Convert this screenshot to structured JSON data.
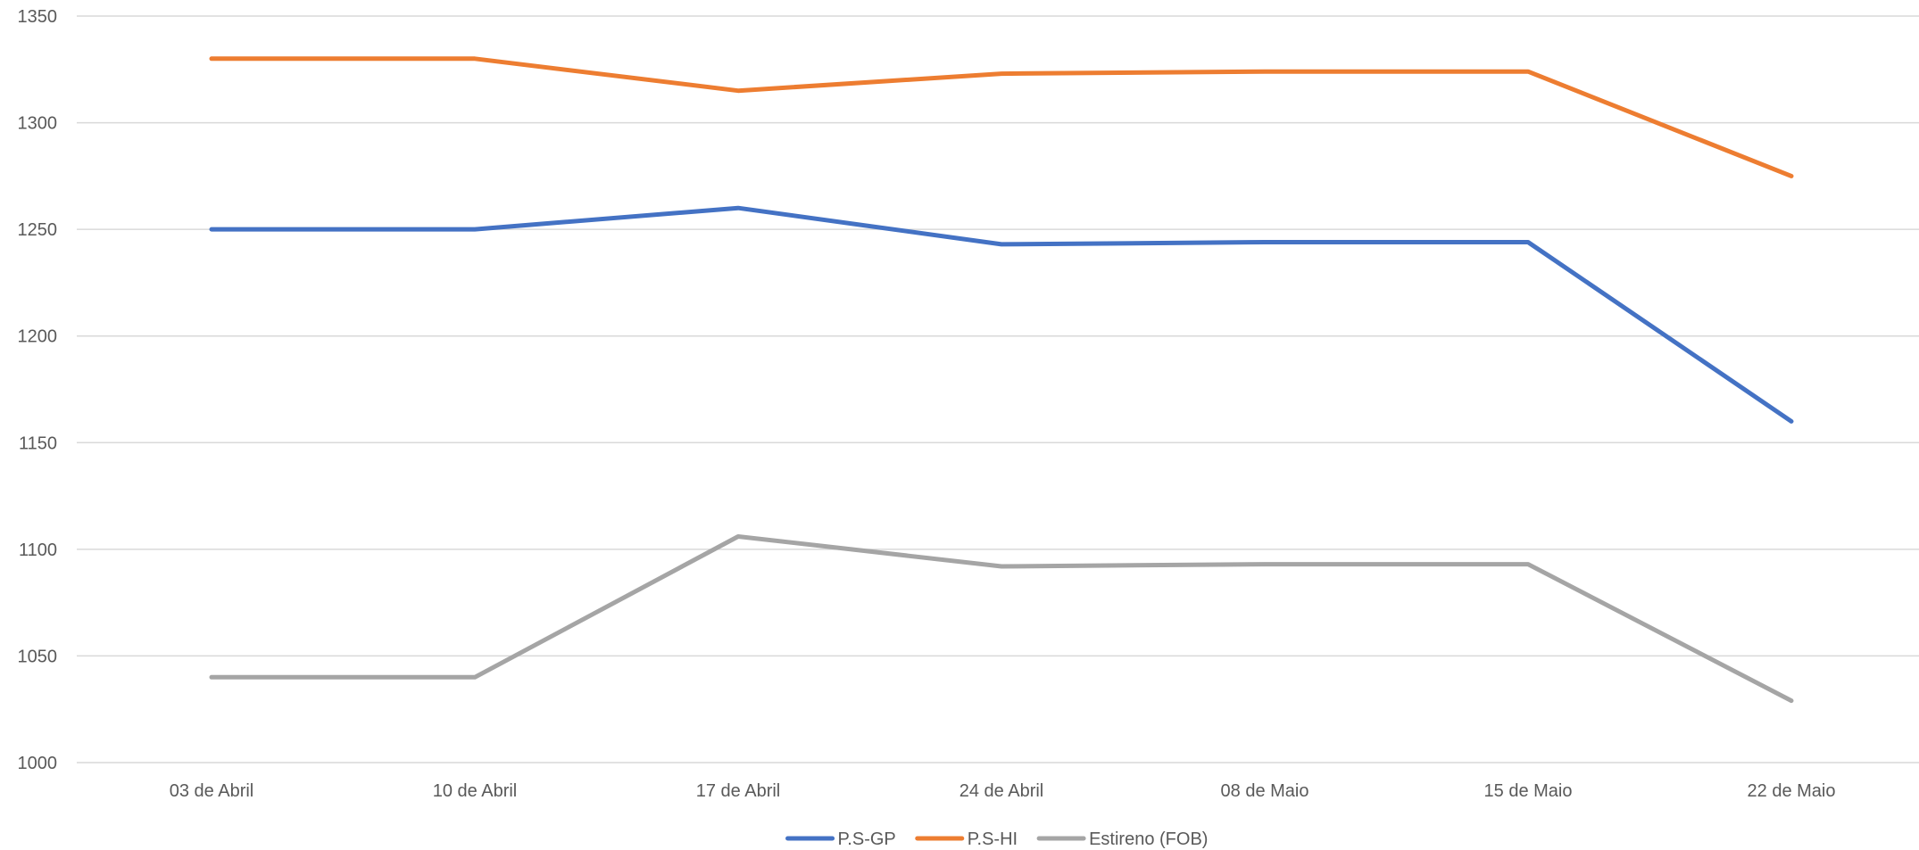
{
  "chart_data": {
    "type": "line",
    "title": "",
    "xlabel": "",
    "ylabel": "",
    "categories": [
      "03 de Abril",
      "10 de Abril",
      "17 de Abril",
      "24 de Abril",
      "08 de Maio",
      "15 de Maio",
      "22 de Maio"
    ],
    "ylim": [
      1000,
      1350
    ],
    "yticks": [
      1000,
      1050,
      1100,
      1150,
      1200,
      1250,
      1300,
      1350
    ],
    "grid": true,
    "legend_position": "bottom",
    "series": [
      {
        "name": "P.S-GP",
        "color": "#4472C4",
        "values": [
          1250,
          1250,
          1260,
          1243,
          1244,
          1244,
          1160
        ]
      },
      {
        "name": "P.S-HI",
        "color": "#ED7D31",
        "values": [
          1330,
          1330,
          1315,
          1323,
          1324,
          1324,
          1275
        ]
      },
      {
        "name": "Estireno (FOB)",
        "color": "#A5A5A5",
        "values": [
          1040,
          1040,
          1106,
          1092,
          1093,
          1093,
          1029
        ]
      }
    ]
  }
}
